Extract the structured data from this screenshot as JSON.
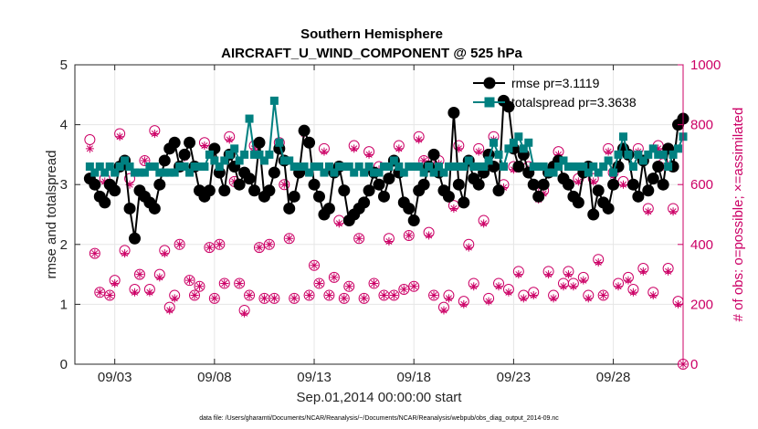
{
  "chart_data": {
    "type": "line",
    "title": [
      "Southern Hemisphere",
      "AIRCRAFT_U_WIND_COMPONENT @ 525 hPa"
    ],
    "xlabel": "Sep.01,2014 00:00:00 start",
    "ylabel": "rmse and totalspread",
    "ylabel_right": "# of obs: o=possible; ×=assimilated",
    "footnote": "data file: /Users/gharamti/Documents/NCAR/Reanalysis/~/Documents/NCAR/Reanalysis/webpub/obs_diag_output_2014-09.nc",
    "xlim": [
      1,
      31.5
    ],
    "ylim": [
      0,
      5
    ],
    "ylim_right": [
      0,
      1000
    ],
    "xticks": [
      3,
      8,
      13,
      18,
      23,
      28
    ],
    "xtick_labels": [
      "09/03",
      "09/08",
      "09/13",
      "09/18",
      "09/23",
      "09/28"
    ],
    "yticks": [
      0,
      1,
      2,
      3,
      4,
      5
    ],
    "yticks_right": [
      0,
      200,
      400,
      600,
      800,
      1000
    ],
    "legend_position": "top-right",
    "series": [
      {
        "name": "rmse",
        "label": "rmse pr=3.1119",
        "color": "#000000",
        "marker": "circle",
        "values": [
          3.1,
          3.0,
          2.8,
          2.7,
          3.0,
          2.9,
          3.3,
          3.4,
          2.6,
          2.1,
          2.9,
          2.8,
          2.7,
          2.6,
          3.0,
          3.4,
          3.6,
          3.7,
          3.3,
          3.5,
          3.7,
          3.3,
          2.9,
          2.8,
          2.9,
          3.6,
          3.2,
          2.9,
          3.5,
          3.3,
          3.0,
          3.2,
          3.1,
          2.9,
          3.7,
          2.8,
          2.9,
          3.2,
          3.6,
          3.4,
          2.6,
          2.8,
          3.2,
          3.9,
          3.7,
          3.0,
          2.8,
          2.5,
          2.6,
          3.2,
          3.3,
          2.9,
          2.4,
          2.5,
          2.6,
          2.7,
          2.9,
          3.2,
          3.0,
          2.8,
          3.1,
          3.4,
          3.2,
          2.7,
          2.6,
          2.4,
          2.9,
          3.0,
          3.3,
          3.5,
          3.2,
          2.9,
          2.8,
          4.2,
          3.0,
          2.7,
          3.4,
          3.1,
          3.0,
          3.2,
          3.5,
          3.3,
          2.9,
          4.4,
          4.3,
          3.6,
          3.3,
          3.5,
          3.2,
          3.0,
          2.8,
          3.0,
          3.2,
          3.3,
          3.4,
          3.1,
          3.0,
          2.8,
          2.7,
          3.2,
          3.3,
          2.5,
          2.9,
          2.7,
          2.6,
          3.0,
          3.3,
          3.6,
          3.5,
          3.0,
          2.8,
          3.4,
          2.9,
          3.1,
          3.3,
          3.0,
          3.6,
          3.3,
          4.0,
          4.1
        ]
      },
      {
        "name": "totalspread",
        "label": "totalspread pr=3.3638",
        "color": "#008080",
        "marker": "square",
        "values": [
          3.3,
          3.2,
          3.3,
          3.2,
          3.3,
          3.2,
          3.3,
          3.4,
          3.3,
          3.2,
          3.2,
          3.2,
          3.3,
          3.3,
          3.2,
          3.2,
          3.2,
          3.2,
          3.3,
          3.3,
          3.2,
          3.3,
          3.3,
          3.3,
          3.5,
          3.4,
          3.3,
          3.4,
          3.5,
          3.6,
          3.4,
          3.5,
          4.1,
          3.5,
          3.5,
          3.4,
          3.5,
          4.4,
          3.7,
          3.4,
          3.4,
          3.3,
          3.3,
          3.3,
          3.2,
          3.3,
          3.3,
          3.2,
          3.3,
          3.2,
          3.3,
          3.3,
          3.3,
          3.2,
          3.3,
          3.2,
          3.3,
          3.2,
          3.2,
          3.3,
          3.3,
          3.4,
          3.3,
          3.2,
          3.3,
          3.3,
          3.3,
          3.2,
          3.3,
          3.2,
          3.3,
          3.2,
          3.3,
          3.3,
          3.3,
          3.3,
          3.4,
          3.3,
          3.3,
          3.3,
          3.4,
          3.7,
          3.5,
          3.3,
          3.6,
          3.7,
          3.8,
          3.6,
          3.7,
          3.3,
          3.3,
          3.3,
          3.2,
          3.2,
          3.3,
          3.4,
          3.3,
          3.3,
          3.3,
          3.3,
          3.2,
          3.3,
          3.2,
          3.3,
          3.4,
          3.2,
          3.5,
          3.8,
          3.5,
          3.3,
          3.5,
          3.4,
          3.5,
          3.6,
          3.5,
          3.5,
          3.3,
          3.5,
          3.6,
          3.8
        ]
      },
      {
        "name": "possible",
        "label": "# of obs possible",
        "color": "#cc0066",
        "marker": "open-circle",
        "axis": "right",
        "values": [
          750,
          370,
          240,
          620,
          230,
          280,
          770,
          380,
          620,
          250,
          300,
          680,
          250,
          780,
          300,
          380,
          190,
          230,
          400,
          700,
          280,
          230,
          260,
          740,
          390,
          220,
          400,
          270,
          760,
          610,
          270,
          180,
          230,
          730,
          390,
          220,
          400,
          220,
          740,
          600,
          420,
          220,
          650,
          780,
          230,
          330,
          270,
          720,
          230,
          290,
          480,
          220,
          260,
          730,
          420,
          220,
          710,
          270,
          660,
          230,
          420,
          230,
          730,
          250,
          430,
          260,
          760,
          680,
          440,
          230,
          680,
          190,
          230,
          530,
          730,
          210,
          400,
          270,
          720,
          480,
          220,
          760,
          270,
          600,
          250,
          660,
          310,
          230,
          660,
          240,
          560,
          580,
          310,
          230,
          710,
          270,
          310,
          270,
          620,
          290,
          230,
          620,
          350,
          230,
          720,
          640,
          270,
          610,
          290,
          250,
          720,
          320,
          520,
          240,
          730,
          670,
          320,
          520,
          210,
          0
        ]
      },
      {
        "name": "assimilated",
        "label": "# of obs assimilated",
        "color": "#cc0066",
        "marker": "asterisk",
        "axis": "right",
        "values": [
          720,
          370,
          240,
          610,
          230,
          270,
          760,
          370,
          600,
          240,
          300,
          680,
          240,
          770,
          290,
          370,
          180,
          220,
          400,
          690,
          280,
          230,
          260,
          730,
          390,
          220,
          400,
          270,
          750,
          610,
          270,
          170,
          230,
          720,
          390,
          220,
          400,
          220,
          730,
          600,
          420,
          220,
          640,
          770,
          230,
          330,
          270,
          710,
          230,
          290,
          470,
          220,
          260,
          720,
          420,
          220,
          700,
          270,
          650,
          230,
          410,
          230,
          720,
          250,
          430,
          260,
          750,
          680,
          430,
          230,
          670,
          180,
          220,
          520,
          720,
          200,
          390,
          260,
          710,
          470,
          210,
          750,
          260,
          590,
          240,
          650,
          300,
          220,
          650,
          230,
          550,
          570,
          300,
          220,
          700,
          260,
          300,
          260,
          610,
          280,
          220,
          610,
          340,
          230,
          710,
          630,
          260,
          600,
          280,
          240,
          710,
          310,
          510,
          230,
          720,
          660,
          310,
          510,
          200,
          0
        ]
      }
    ]
  }
}
